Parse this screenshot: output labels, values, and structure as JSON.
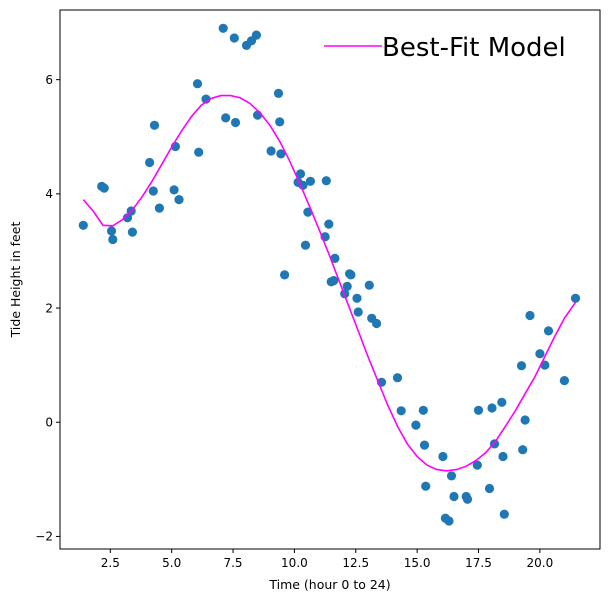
{
  "chart_data": {
    "type": "scatter",
    "title": "",
    "xlabel": "Time (hour 0 to 24)",
    "ylabel": "Tide Height in feet",
    "xlim": [
      0.45,
      22.45
    ],
    "ylim": [
      -2.22,
      7.22
    ],
    "xticks": [
      2.5,
      5.0,
      7.5,
      10.0,
      12.5,
      15.0,
      17.5,
      20.0
    ],
    "xtick_labels": [
      "2.5",
      "5.0",
      "7.5",
      "10.0",
      "12.5",
      "15.0",
      "17.5",
      "20.0"
    ],
    "yticks": [
      -2,
      0,
      2,
      4,
      6
    ],
    "ytick_labels": [
      "−2",
      "0",
      "2",
      "4",
      "6"
    ],
    "grid": false,
    "legend": {
      "placement": "top-right",
      "entries": [
        "Best-Fit Model"
      ]
    },
    "colors": {
      "points": "#1f77b4",
      "model": "#ff00ff"
    },
    "series": [
      {
        "kind": "scatter",
        "x": [
          1.4,
          2.15,
          2.25,
          2.55,
          2.6,
          3.2,
          3.35,
          3.4,
          4.1,
          4.25,
          4.3,
          4.5,
          5.1,
          5.15,
          5.3,
          6.05,
          6.1,
          6.4,
          7.1,
          7.2,
          7.55,
          7.6,
          8.05,
          8.25,
          8.45,
          8.5,
          9.05,
          9.35,
          9.4,
          9.45,
          9.6,
          10.15,
          10.25,
          10.35,
          10.45,
          10.55,
          10.65,
          11.25,
          11.3,
          11.4,
          11.5,
          11.6,
          11.65,
          12.05,
          12.15,
          12.25,
          12.3,
          12.55,
          12.6,
          13.05,
          13.15,
          13.35,
          13.55,
          14.2,
          14.35,
          14.95,
          15.25,
          15.3,
          15.35,
          16.05,
          16.15,
          16.3,
          16.4,
          16.5,
          17.0,
          17.05,
          17.45,
          17.5,
          17.95,
          18.05,
          18.15,
          18.45,
          18.5,
          18.55,
          19.25,
          19.3,
          19.4,
          19.6,
          20.0,
          20.2,
          20.35,
          21.0,
          21.45
        ],
        "y": [
          3.45,
          4.13,
          4.1,
          3.35,
          3.2,
          3.58,
          3.7,
          3.33,
          4.55,
          4.05,
          5.2,
          3.75,
          4.07,
          4.83,
          3.9,
          5.93,
          4.73,
          5.66,
          6.9,
          5.33,
          6.73,
          5.25,
          6.6,
          6.68,
          6.78,
          5.38,
          4.75,
          5.76,
          5.26,
          4.7,
          2.58,
          4.2,
          4.35,
          4.15,
          3.1,
          3.68,
          4.22,
          3.25,
          4.23,
          3.47,
          2.46,
          2.48,
          2.87,
          2.25,
          2.38,
          2.6,
          2.58,
          2.17,
          1.93,
          2.4,
          1.82,
          1.73,
          0.7,
          0.78,
          0.2,
          -0.05,
          0.21,
          -0.4,
          -1.12,
          -0.6,
          -1.68,
          -1.73,
          -0.94,
          -1.3,
          -1.3,
          -1.35,
          -0.75,
          0.21,
          -1.16,
          0.25,
          -0.38,
          0.35,
          -0.6,
          -1.61,
          0.99,
          -0.48,
          0.04,
          1.87,
          1.2,
          1.0,
          1.6,
          0.73,
          2.17
        ]
      },
      {
        "kind": "line",
        "name": "Best-Fit Model",
        "x": [
          1.4,
          1.8,
          2.2,
          2.6,
          3.0,
          3.4,
          3.8,
          4.2,
          4.6,
          5.0,
          5.4,
          5.8,
          6.2,
          6.6,
          7.0,
          7.4,
          7.8,
          8.2,
          8.6,
          9.0,
          9.4,
          9.8,
          10.2,
          10.6,
          11.0,
          11.4,
          11.8,
          12.2,
          12.6,
          13.0,
          13.4,
          13.8,
          14.2,
          14.6,
          15.0,
          15.4,
          15.8,
          16.2,
          16.6,
          17.0,
          17.4,
          17.8,
          18.2,
          18.6,
          19.0,
          19.4,
          19.8,
          20.2,
          20.6,
          21.0,
          21.45
        ],
        "y": [
          3.9,
          3.7,
          3.45,
          3.44,
          3.55,
          3.72,
          3.95,
          4.22,
          4.52,
          4.82,
          5.1,
          5.35,
          5.55,
          5.67,
          5.72,
          5.72,
          5.68,
          5.58,
          5.42,
          5.2,
          4.92,
          4.58,
          4.2,
          3.8,
          3.38,
          2.95,
          2.5,
          2.05,
          1.6,
          1.15,
          0.72,
          0.3,
          -0.07,
          -0.38,
          -0.6,
          -0.75,
          -0.83,
          -0.85,
          -0.83,
          -0.77,
          -0.67,
          -0.53,
          -0.33,
          -0.07,
          0.2,
          0.5,
          0.8,
          1.15,
          1.5,
          1.82,
          2.1
        ]
      }
    ]
  }
}
